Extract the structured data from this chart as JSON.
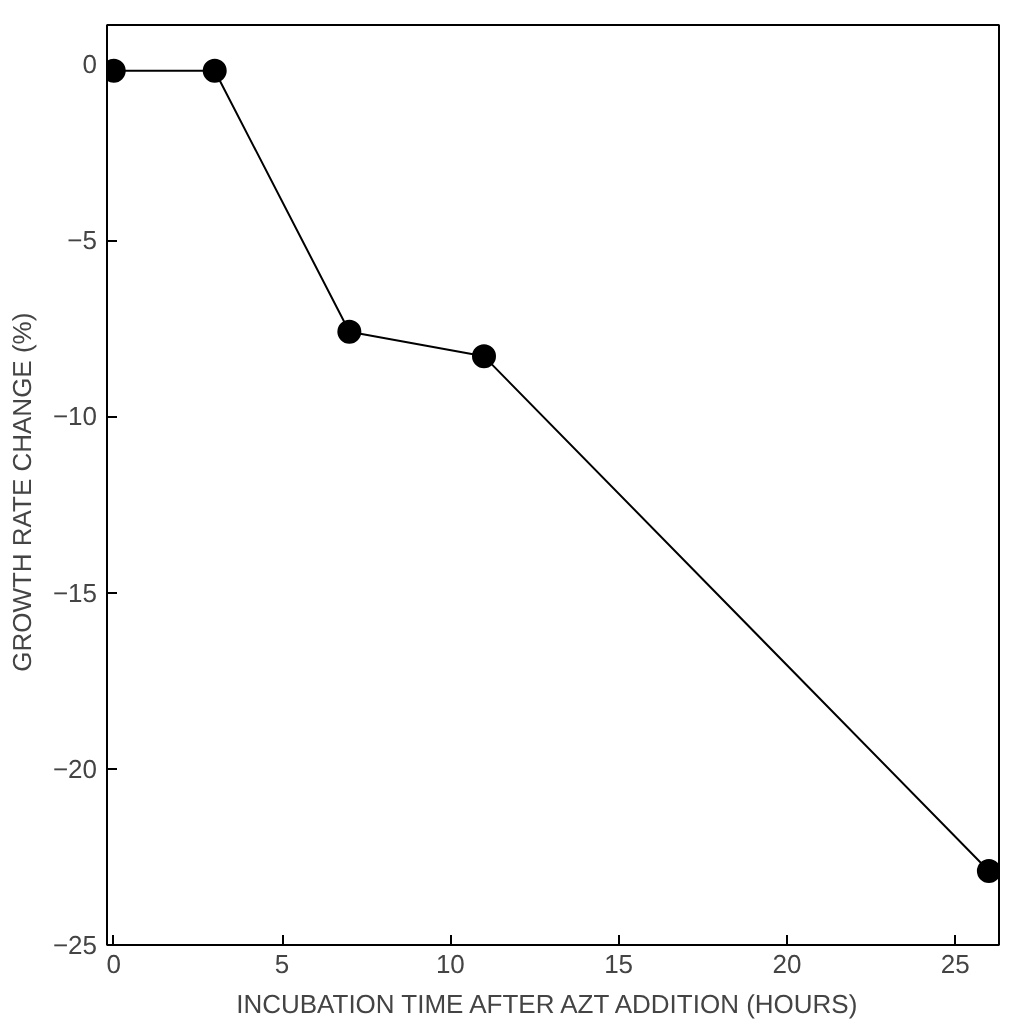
{
  "chart_data": {
    "type": "line",
    "xlabel": "INCUBATION TIME AFTER AZT ADDITION  (HOURS)",
    "ylabel": "GROWTH  RATE CHANGE  (%)",
    "x": [
      0,
      3,
      7,
      11,
      26
    ],
    "series": [
      {
        "color": "#000000",
        "values": [
          -0.2,
          -0.2,
          -7.6,
          -8.3,
          -22.9
        ]
      }
    ],
    "xlim": [
      -0.2,
      26.3
    ],
    "ylim": [
      -25,
      1.1
    ],
    "xticks": [
      0,
      5,
      10,
      15,
      20,
      25
    ],
    "yticks": [
      0,
      -5,
      -10,
      -15,
      -20,
      -25
    ],
    "marker": "circle",
    "line_style": "solid",
    "grid": false
  }
}
